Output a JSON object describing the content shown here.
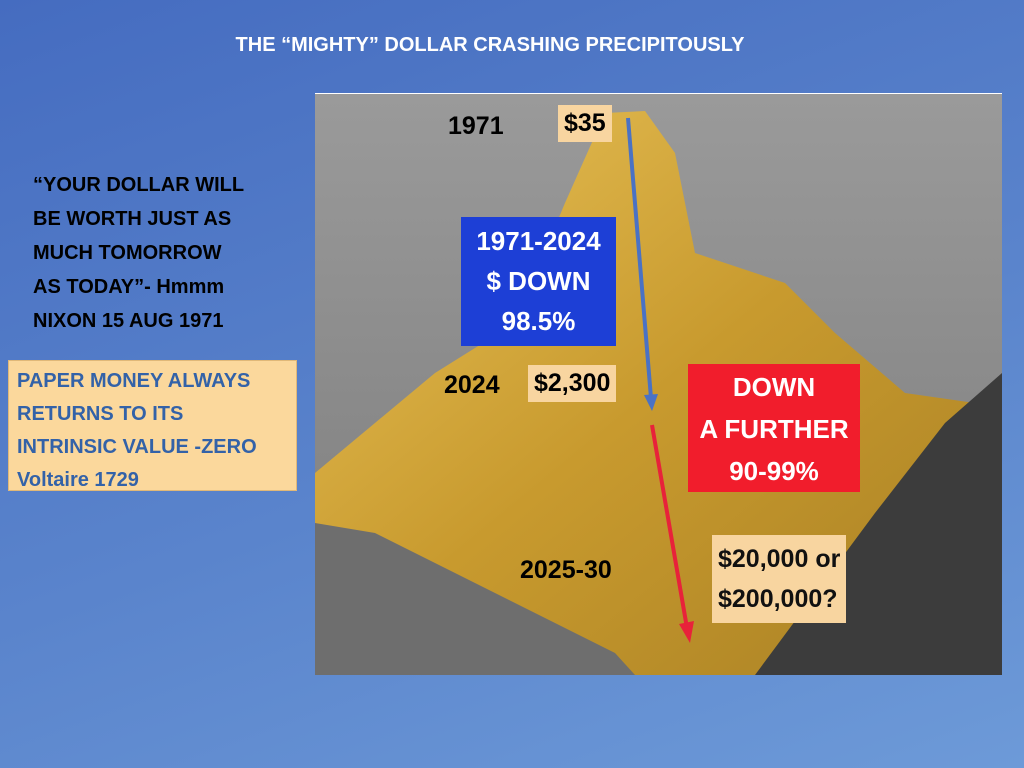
{
  "title": "THE “MIGHTY” DOLLAR CRASHING PRECIPITOUSLY",
  "quote": {
    "lines": [
      "“YOUR DOLLAR WILL",
      "BE WORTH JUST AS",
      "MUCH TOMORROW",
      "AS TODAY”- Hmmm",
      "NIXON 15 AUG 1971"
    ]
  },
  "voltaire": {
    "lines": [
      "PAPER MONEY ALWAYS",
      "RETURNS TO ITS",
      "INTRINSIC VALUE -ZERO",
      "Voltaire 1729"
    ]
  },
  "image_labels": {
    "year_1971": "1971",
    "price_1971": "$35",
    "range_box": {
      "lines": [
        "1971-2024",
        "$ DOWN",
        "98.5%"
      ]
    },
    "year_2024": "2024",
    "price_2024": "$2,300",
    "further_box": {
      "lines": [
        "DOWN",
        "A FURTHER",
        "90-99%"
      ]
    },
    "year_future": "2025-30",
    "price_future": {
      "lines": [
        "$20,000 or",
        "$200,000?"
      ]
    }
  }
}
